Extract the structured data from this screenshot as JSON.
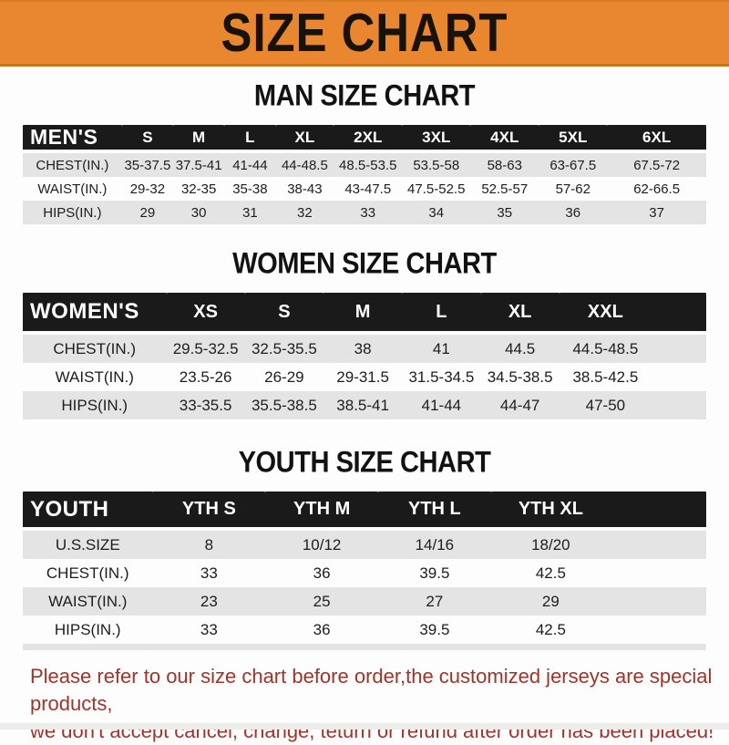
{
  "banner": {
    "title": "SIZE CHART"
  },
  "colors": {
    "banner_bg": "#E8872F",
    "table_header_bg": "#1A1A1A",
    "row_stripe": "#E4E4E4",
    "footer_text": "#A0342B"
  },
  "men": {
    "title": "MAN SIZE CHART",
    "corner": "MEN'S",
    "sizes": [
      "S",
      "M",
      "L",
      "XL",
      "2XL",
      "3XL",
      "4XL",
      "5XL",
      "6XL"
    ],
    "rows": [
      {
        "label": "CHEST(IN.)",
        "values": [
          "35-37.5",
          "37.5-41",
          "41-44",
          "44-48.5",
          "48.5-53.5",
          "53.5-58",
          "58-63",
          "63-67.5",
          "67.5-72"
        ]
      },
      {
        "label": "WAIST(IN.)",
        "values": [
          "29-32",
          "32-35",
          "35-38",
          "38-43",
          "43-47.5",
          "47.5-52.5",
          "52.5-57",
          "57-62",
          "62-66.5"
        ]
      },
      {
        "label": "HIPS(IN.)",
        "values": [
          "29",
          "30",
          "31",
          "32",
          "33",
          "34",
          "35",
          "36",
          "37"
        ]
      }
    ]
  },
  "women": {
    "title": "WOMEN SIZE CHART",
    "corner": "WOMEN'S",
    "sizes": [
      "XS",
      "S",
      "M",
      "L",
      "XL",
      "XXL"
    ],
    "rows": [
      {
        "label": "CHEST(IN.)",
        "values": [
          "29.5-32.5",
          "32.5-35.5",
          "38",
          "41",
          "44.5",
          "44.5-48.5"
        ]
      },
      {
        "label": "WAIST(IN.)",
        "values": [
          "23.5-26",
          "26-29",
          "29-31.5",
          "31.5-34.5",
          "34.5-38.5",
          "38.5-42.5"
        ]
      },
      {
        "label": "HIPS(IN.)",
        "values": [
          "33-35.5",
          "35.5-38.5",
          "38.5-41",
          "41-44",
          "44-47",
          "47-50"
        ]
      }
    ]
  },
  "youth": {
    "title": "YOUTH SIZE CHART",
    "corner": "YOUTH",
    "sizes": [
      "YTH S",
      "YTH M",
      "YTH L",
      "YTH XL"
    ],
    "rows": [
      {
        "label": "U.S.SIZE",
        "values": [
          "8",
          "10/12",
          "14/16",
          "18/20"
        ]
      },
      {
        "label": "CHEST(IN.)",
        "values": [
          "33",
          "36",
          "39.5",
          "42.5"
        ]
      },
      {
        "label": "WAIST(IN.)",
        "values": [
          "23",
          "25",
          "27",
          "29"
        ]
      },
      {
        "label": "HIPS(IN.)",
        "values": [
          "33",
          "36",
          "39.5",
          "42.5"
        ]
      }
    ]
  },
  "footer": {
    "line1": "Please refer to our size chart before order,the customized jerseys are special products,",
    "line2": "we don't accept cancel, change, teturn or refund after order has been placed!"
  }
}
